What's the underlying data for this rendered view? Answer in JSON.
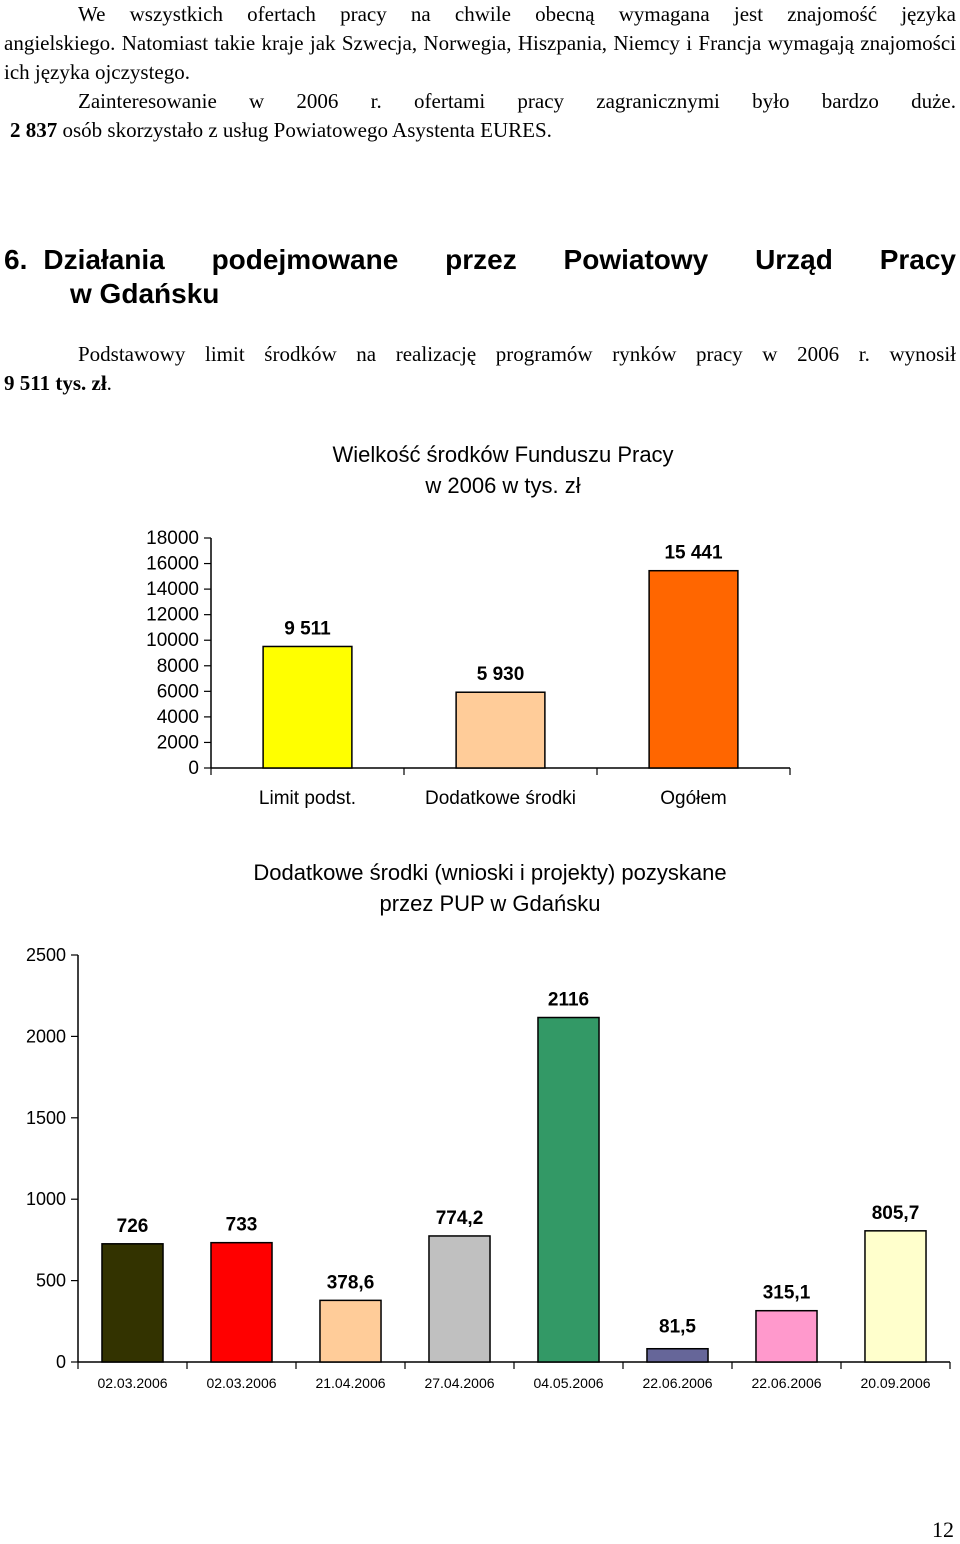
{
  "paragraphs": {
    "p1_line1": "We wszystkich ofertach pracy na chwile obecną wymagana jest znajomość języka",
    "p1_rest": "angielskiego. Natomiast takie kraje jak Szwecja, Norwegia, Hiszpania, Niemcy i Francja wymagają znajomości ich języka ojczystego.",
    "p2_line1": "Zainteresowanie w 2006 r. ofertami pracy zagranicznymi było bardzo duże.",
    "p2_num": "2 837",
    "p2_rest": " osób skorzystało z usług Powiatowego Asystenta EURES."
  },
  "section": {
    "number": "6.",
    "heading_line1": "Działania podejmowane przez Powiatowy Urząd Pracy",
    "heading_line2": "w Gdańsku",
    "para_line1": "Podstawowy limit środków na realizację programów rynków pracy w 2006 r. wynosił",
    "para_amount": "9 511 tys. zł",
    "para_end": "."
  },
  "chart_data": [
    {
      "type": "bar",
      "title_line1": "Wielkość środków Funduszu Pracy",
      "title_line2": "w 2006 w tys. zł",
      "categories": [
        "Limit podst.",
        "Dodatkowe środki",
        "Ogółem"
      ],
      "values": [
        9511,
        5930,
        15441
      ],
      "value_labels": [
        "9 511",
        "5 930",
        "15 441"
      ],
      "colors": [
        "#ffff00",
        "#ffcc99",
        "#ff6600"
      ],
      "yticks": [
        0,
        2000,
        4000,
        6000,
        8000,
        10000,
        12000,
        14000,
        16000,
        18000
      ],
      "ylim": [
        0,
        18000
      ],
      "grid": false,
      "legend": "none"
    },
    {
      "type": "bar",
      "title_line1": "Dodatkowe środki (wnioski i projekty) pozyskane",
      "title_line2": "przez PUP w Gdańsku",
      "categories": [
        "02.03.2006",
        "02.03.2006",
        "21.04.2006",
        "27.04.2006",
        "04.05.2006",
        "22.06.2006",
        "22.06.2006",
        "20.09.2006"
      ],
      "values": [
        726,
        733,
        378.6,
        774.2,
        2116,
        81.5,
        315.1,
        805.7
      ],
      "value_labels": [
        "726",
        "733",
        "378,6",
        "774,2",
        "2116",
        "81,5",
        "315,1",
        "805,7"
      ],
      "colors": [
        "#333300",
        "#ff0000",
        "#ffcc99",
        "#c0c0c0",
        "#339966",
        "#666699",
        "#ff99cc",
        "#ffffcc"
      ],
      "yticks": [
        0,
        500,
        1000,
        1500,
        2000,
        2500
      ],
      "ylim": [
        0,
        2500
      ],
      "grid": false,
      "legend": "none"
    }
  ],
  "page_number": "12"
}
